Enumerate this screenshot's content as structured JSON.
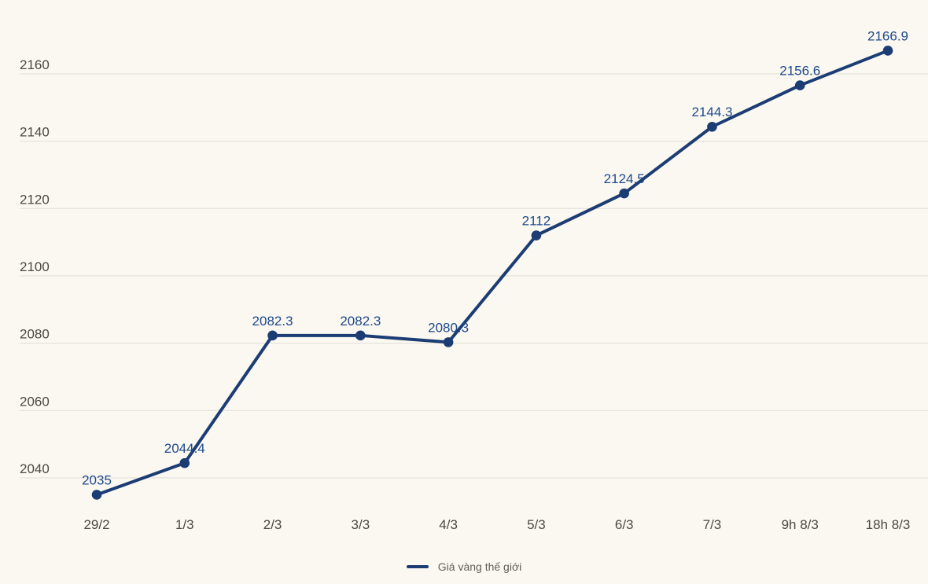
{
  "chart_data": {
    "type": "line",
    "title": "",
    "categories": [
      "29/2",
      "1/3",
      "2/3",
      "3/3",
      "4/3",
      "5/3",
      "6/3",
      "7/3",
      "9h 8/3",
      "18h 8/3"
    ],
    "series": [
      {
        "name": "Giá vàng thế giới",
        "values": [
          2035,
          2044.4,
          2082.3,
          2082.3,
          2080.3,
          2112,
          2124.5,
          2144.3,
          2156.6,
          2166.9
        ],
        "point_labels": [
          "2035",
          "2044.4",
          "2082.3",
          "2082.3",
          "2080.3",
          "2112",
          "2124.5",
          "2144.3",
          "2156.6",
          "2166.9"
        ]
      }
    ],
    "y_ticks": [
      2040,
      2060,
      2080,
      2100,
      2120,
      2140,
      2160
    ],
    "y_tick_labels": [
      "2040",
      "2060",
      "2080",
      "2100",
      "2120",
      "2140",
      "2160"
    ],
    "ylim": [
      2030,
      2170
    ],
    "xlabel": "",
    "ylabel": "",
    "grid": "horizontal-only",
    "legend_position": "bottom-center",
    "colors": {
      "line": "#1b3d74",
      "point": "#1b3d74",
      "point_label": "#1d4a8c",
      "axis_text": "#4c4844",
      "gridline": "#e7e3dd",
      "background": "#fbf7f1",
      "legend_text": "#63605c"
    }
  }
}
